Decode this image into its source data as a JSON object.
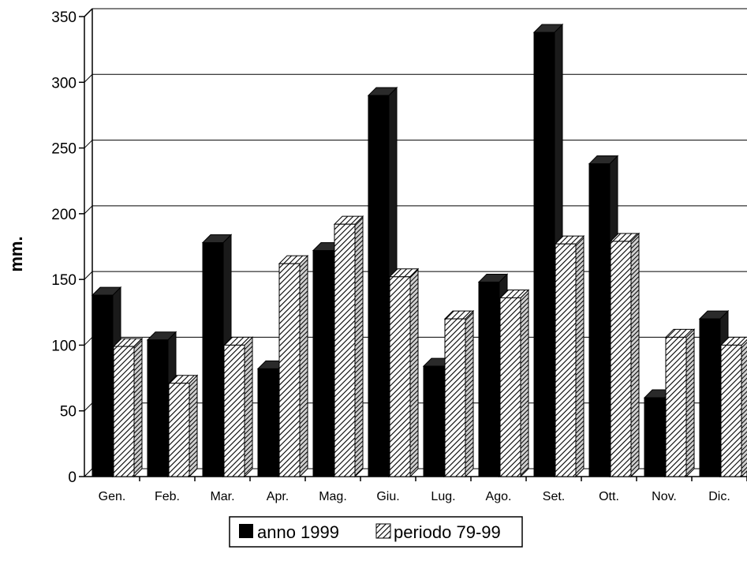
{
  "chart_data": {
    "type": "bar",
    "title": "",
    "xlabel": "",
    "ylabel": "mm.",
    "ylim": [
      0,
      350
    ],
    "yticks": [
      0,
      50,
      100,
      150,
      200,
      250,
      300,
      350
    ],
    "grid": true,
    "legend_position": "bottom",
    "categories": [
      "Gen.",
      "Feb.",
      "Mar.",
      "Apr.",
      "Mag.",
      "Giu.",
      "Lug.",
      "Ago.",
      "Set.",
      "Ott.",
      "Nov.",
      "Dic."
    ],
    "series": [
      {
        "name": "anno 1999",
        "color": "#000000",
        "pattern": "solid",
        "values": [
          138,
          104,
          178,
          82,
          172,
          290,
          84,
          148,
          338,
          238,
          60,
          120
        ]
      },
      {
        "name": "periodo 79-99",
        "color": "#ffffff",
        "pattern": "hatched",
        "values": [
          99,
          71,
          100,
          162,
          192,
          152,
          120,
          136,
          177,
          179,
          106,
          100
        ]
      }
    ]
  }
}
